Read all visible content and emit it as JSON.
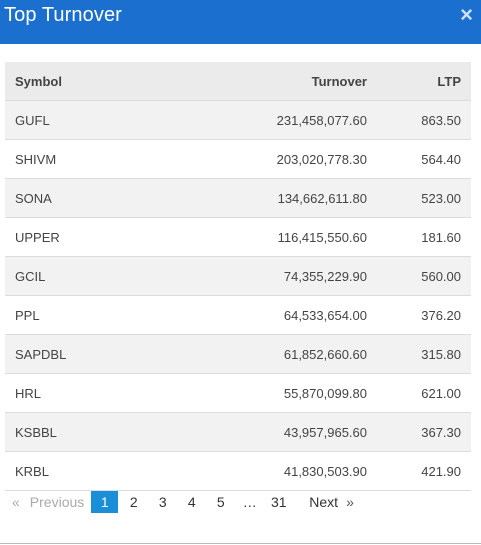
{
  "modal": {
    "title": "Top Turnover",
    "close_glyph": "×"
  },
  "table": {
    "headers": {
      "symbol": "Symbol",
      "turnover": "Turnover",
      "ltp": "LTP"
    },
    "rows": [
      {
        "symbol": "GUFL",
        "turnover": "231,458,077.60",
        "ltp": "863.50"
      },
      {
        "symbol": "SHIVM",
        "turnover": "203,020,778.30",
        "ltp": "564.40"
      },
      {
        "symbol": "SONA",
        "turnover": "134,662,611.80",
        "ltp": "523.00"
      },
      {
        "symbol": "UPPER",
        "turnover": "116,415,550.60",
        "ltp": "181.60"
      },
      {
        "symbol": "GCIL",
        "turnover": "74,355,229.90",
        "ltp": "560.00"
      },
      {
        "symbol": "PPL",
        "turnover": "64,533,654.00",
        "ltp": "376.20"
      },
      {
        "symbol": "SAPDBL",
        "turnover": "61,852,660.60",
        "ltp": "315.80"
      },
      {
        "symbol": "HRL",
        "turnover": "55,870,099.80",
        "ltp": "621.00"
      },
      {
        "symbol": "KSBBL",
        "turnover": "43,957,965.60",
        "ltp": "367.30"
      },
      {
        "symbol": "KRBL",
        "turnover": "41,830,503.90",
        "ltp": "421.90"
      }
    ]
  },
  "pagination": {
    "prev_arrow": "«",
    "prev_label": "Previous",
    "pages": [
      "1",
      "2",
      "3",
      "4",
      "5",
      "…",
      "31"
    ],
    "active_page": "1",
    "next_label": "Next",
    "next_arrow": "»"
  },
  "colors": {
    "header_bg": "#1a6fcf",
    "active_page_bg": "#1a8fd8"
  }
}
